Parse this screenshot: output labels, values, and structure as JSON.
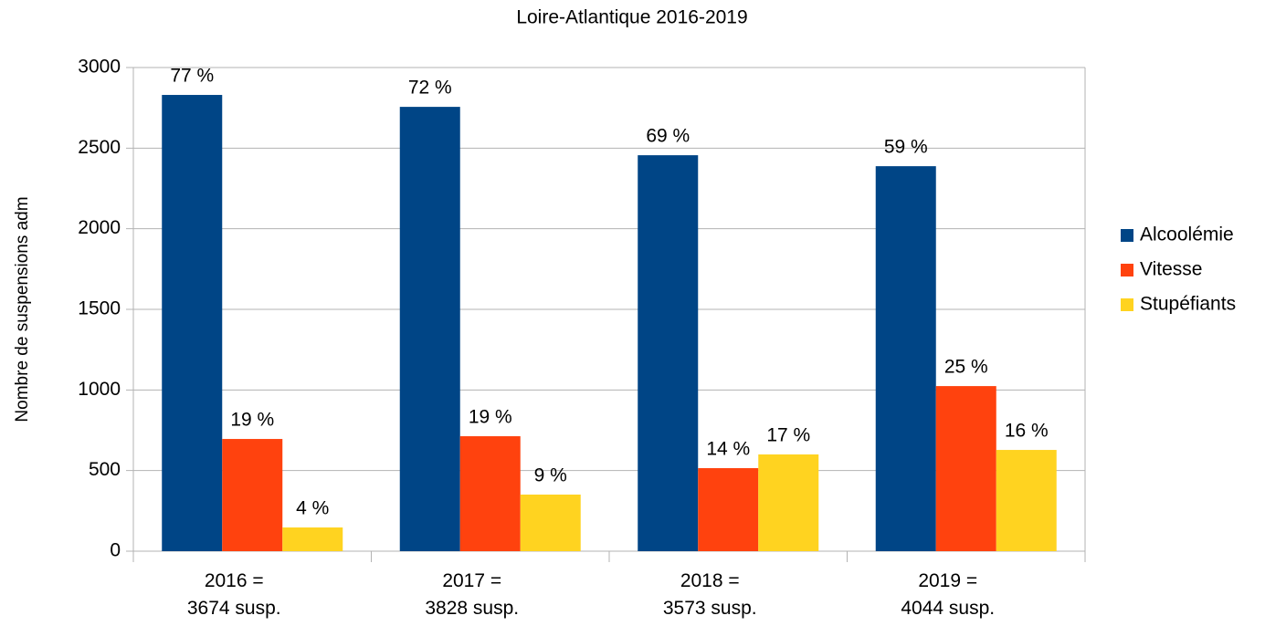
{
  "chart_data": {
    "type": "bar",
    "title": "Loire-Atlantique 2016-2019",
    "y_label": "Nombre de suspensions adm",
    "categories": [
      "2016 =\n3674 susp.",
      "2017 =\n3828 susp.",
      "2018 =\n3573 susp.",
      "2019 =\n4044 susp."
    ],
    "series": [
      {
        "name": "Alcoolémie",
        "color": "#004586",
        "values": [
          2830,
          2756,
          2456,
          2388
        ],
        "value_labels": [
          "77 %",
          "72 %",
          "69 %",
          "59 %"
        ]
      },
      {
        "name": "Vitesse",
        "color": "#ff420e",
        "values": [
          696,
          713,
          515,
          1024
        ],
        "value_labels": [
          "19 %",
          "19 %",
          "14 %",
          "25 %"
        ]
      },
      {
        "name": "Stupéfiants",
        "color": "#ffd320",
        "values": [
          147,
          351,
          600,
          628
        ],
        "value_labels": [
          "4 %",
          "9 %",
          "17 %",
          "16 %"
        ]
      }
    ],
    "ylim": [
      0,
      3000
    ],
    "yticks": [
      0,
      500,
      1000,
      1500,
      2000,
      2500,
      3000
    ],
    "grid": true,
    "legend": "right"
  }
}
